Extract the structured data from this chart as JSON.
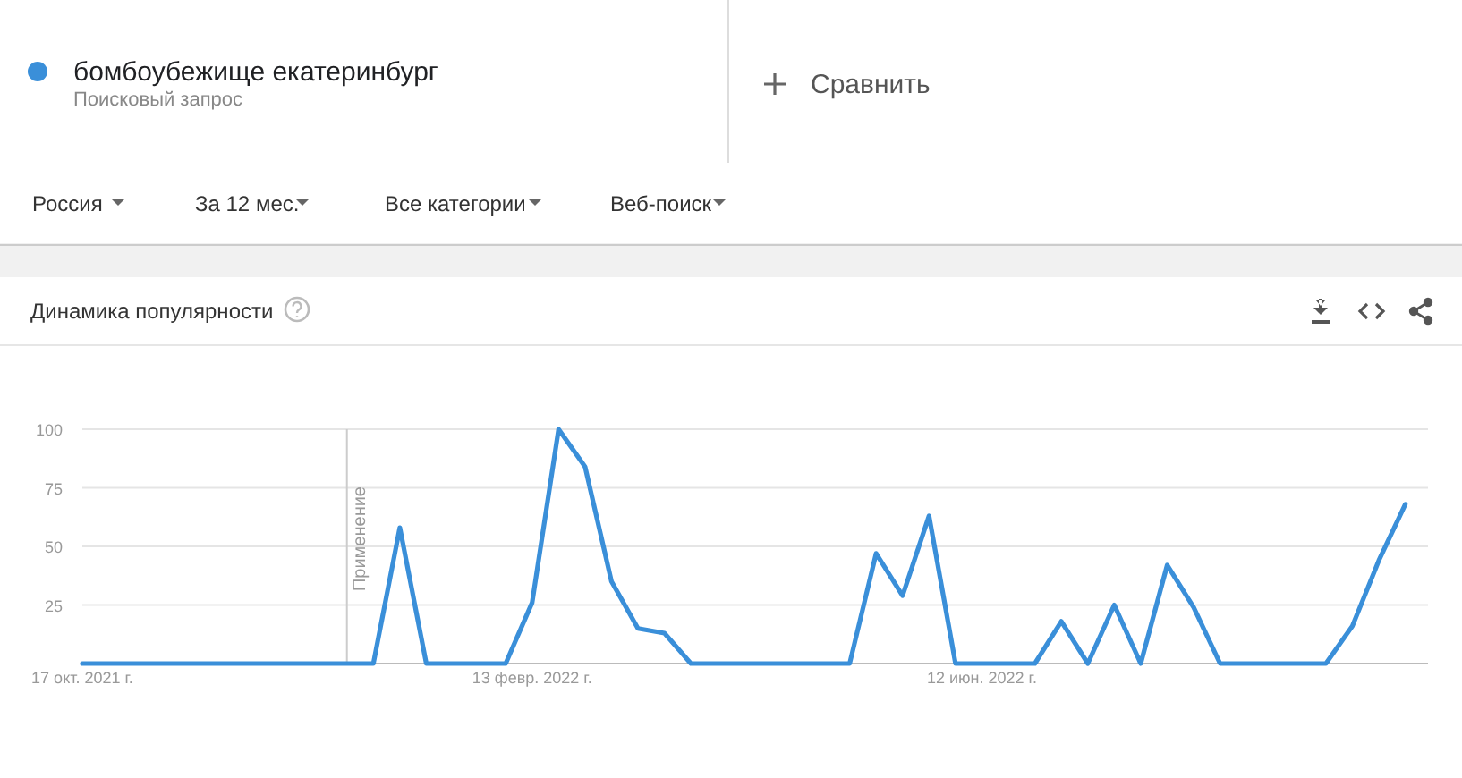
{
  "chart_data": {
    "type": "line",
    "title": "Динамика популярности",
    "subtitle": "Поисковый запрос",
    "legend": "top left",
    "grid": "y",
    "marker": "none",
    "line_style": "solid",
    "annotations": [
      "Сравнить",
      "Россия",
      "За 12 мес.",
      "Все категории",
      "Веб-поиск"
    ],
    "x": [
      "2021-10-17",
      "2021-10-24",
      "2021-10-31",
      "2021-11-07",
      "2021-11-14",
      "2021-11-21",
      "2021-11-28",
      "2021-12-05",
      "2021-12-12",
      "2021-12-19",
      "2021-12-26",
      "2022-01-02",
      "2022-01-09",
      "2022-01-16",
      "2022-01-23",
      "2022-01-30",
      "2022-02-06",
      "2022-02-13",
      "2022-02-20",
      "2022-02-27",
      "2022-03-06",
      "2022-03-13",
      "2022-03-20",
      "2022-03-27",
      "2022-04-03",
      "2022-04-10",
      "2022-04-17",
      "2022-04-24",
      "2022-05-01",
      "2022-05-08",
      "2022-05-15",
      "2022-05-22",
      "2022-05-29",
      "2022-06-05",
      "2022-06-12",
      "2022-06-19",
      "2022-06-26",
      "2022-07-03",
      "2022-07-10",
      "2022-07-17",
      "2022-07-24",
      "2022-07-31",
      "2022-08-07",
      "2022-08-14",
      "2022-08-21",
      "2022-08-28",
      "2022-09-04",
      "2022-09-11",
      "2022-09-18",
      "2022-09-25",
      "2022-10-02"
    ],
    "series": [
      {
        "name": "бомбоубежище екатеринбург",
        "color": "#3a8fd9",
        "values": [
          0,
          0,
          0,
          0,
          0,
          0,
          0,
          0,
          0,
          0,
          0,
          0,
          58,
          0,
          0,
          0,
          0,
          26,
          100,
          84,
          35,
          15,
          13,
          0,
          0,
          0,
          0,
          0,
          0,
          0,
          47,
          29,
          63,
          0,
          0,
          0,
          0,
          18,
          0,
          25,
          0,
          42,
          24,
          0,
          0,
          0,
          0,
          0,
          16,
          44,
          68
        ]
      }
    ],
    "xlim": [
      "2021-10-17",
      "2022-10-08"
    ],
    "xticks": [
      {
        "value": "2021-10-17",
        "label": "17 окт. 2021 г."
      },
      {
        "value": "2022-02-13",
        "label": "13 февр. 2022 г."
      },
      {
        "value": "2022-06-12",
        "label": "12 июн. 2022 г."
      }
    ],
    "ylim": [
      0,
      100
    ],
    "yticks": [
      {
        "value": 0,
        "label": null
      },
      25,
      50,
      75,
      100
    ],
    "ref_lines": [
      {
        "axis": "x",
        "value": "2021-12-26",
        "label": "Применение"
      }
    ]
  }
}
